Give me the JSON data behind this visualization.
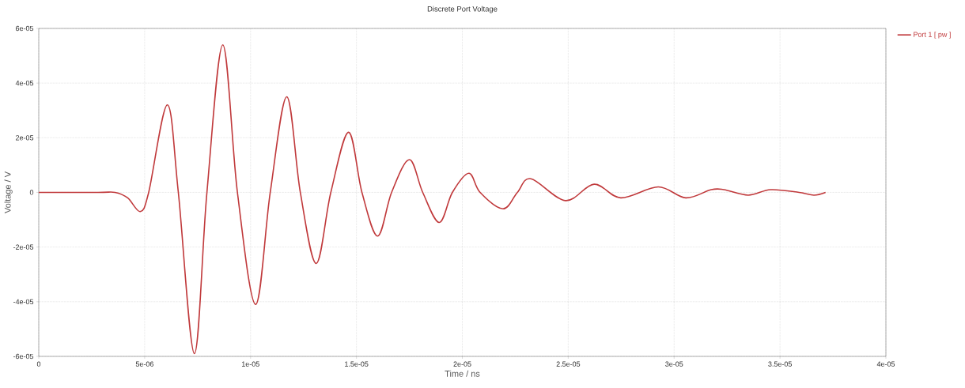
{
  "chart_data": {
    "type": "line",
    "title": "Discrete Port Voltage",
    "xlabel": "Time / ns",
    "ylabel": "Voltage / V",
    "xlim": [
      0,
      4e-05
    ],
    "ylim": [
      -6e-05,
      6e-05
    ],
    "xticks": [
      0,
      5e-06,
      1e-05,
      1.5e-05,
      2e-05,
      2.5e-05,
      3e-05,
      3.5e-05,
      4e-05
    ],
    "yticks": [
      -6e-05,
      -4e-05,
      -2e-05,
      0,
      2e-05,
      4e-05,
      6e-05
    ],
    "grid": true,
    "legend": "top right",
    "line_style": "solid",
    "series": [
      {
        "name": "Port 1 [ pw ]",
        "color": "#c0393b",
        "x": [
          0,
          2.8e-06,
          3.6e-06,
          4.2e-06,
          4.79e-06,
          5.19e-06,
          6.07e-06,
          6.59e-06,
          7.35e-06,
          7.94e-06,
          8.69e-06,
          9.38e-06,
          1.024e-05,
          1.093e-05,
          1.171e-05,
          1.235e-05,
          1.31e-05,
          1.379e-05,
          1.463e-05,
          1.526e-05,
          1.6e-05,
          1.666e-05,
          1.75e-05,
          1.813e-05,
          1.891e-05,
          1.953e-05,
          2.031e-05,
          2.084e-05,
          2.192e-05,
          2.26e-05,
          2.324e-05,
          2.487e-05,
          2.622e-05,
          2.748e-05,
          2.925e-05,
          3.055e-05,
          3.175e-05,
          3.235e-05,
          3.35e-05,
          3.456e-05,
          3.59e-05,
          3.66e-05,
          3.715e-05
        ],
        "values": [
          0,
          0,
          0,
          -2e-06,
          -7e-06,
          0,
          3.2e-05,
          0,
          -5.9e-05,
          0,
          5.4e-05,
          0,
          -4.1e-05,
          0,
          3.5e-05,
          0,
          -2.6e-05,
          0,
          2.2e-05,
          0,
          -1.6e-05,
          0,
          1.2e-05,
          0,
          -1.1e-05,
          0,
          7e-06,
          0,
          -6e-06,
          0,
          5e-06,
          -3e-06,
          3e-06,
          -2e-06,
          2e-06,
          -2e-06,
          1e-06,
          1e-06,
          -1e-06,
          1e-06,
          0,
          -1e-06,
          0
        ]
      }
    ]
  }
}
